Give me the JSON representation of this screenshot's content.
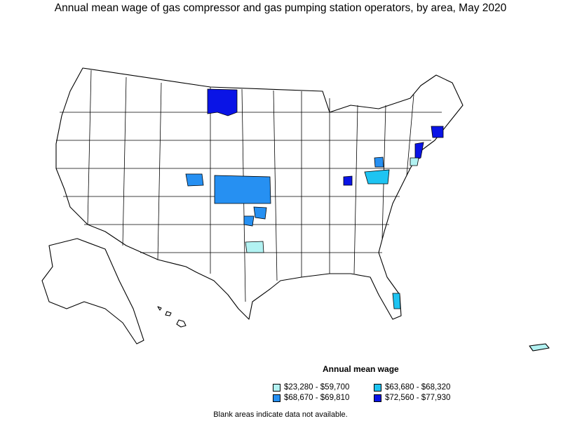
{
  "title": "Annual mean wage of gas compressor and gas pumping station operators, by area, May 2020",
  "legend": {
    "title": "Annual mean wage",
    "items": [
      {
        "label": "$23,280 - $59,700",
        "color": "#b2f2f2"
      },
      {
        "label": "$63,680 - $68,320",
        "color": "#1ec4f2"
      },
      {
        "label": "$68,670 - $69,810",
        "color": "#2690f2"
      },
      {
        "label": "$72,560 - $77,930",
        "color": "#0a14e6"
      }
    ]
  },
  "footnote": "Blank areas indicate data not available.",
  "colors": {
    "outline": "#000000",
    "land": "#ffffff"
  }
}
